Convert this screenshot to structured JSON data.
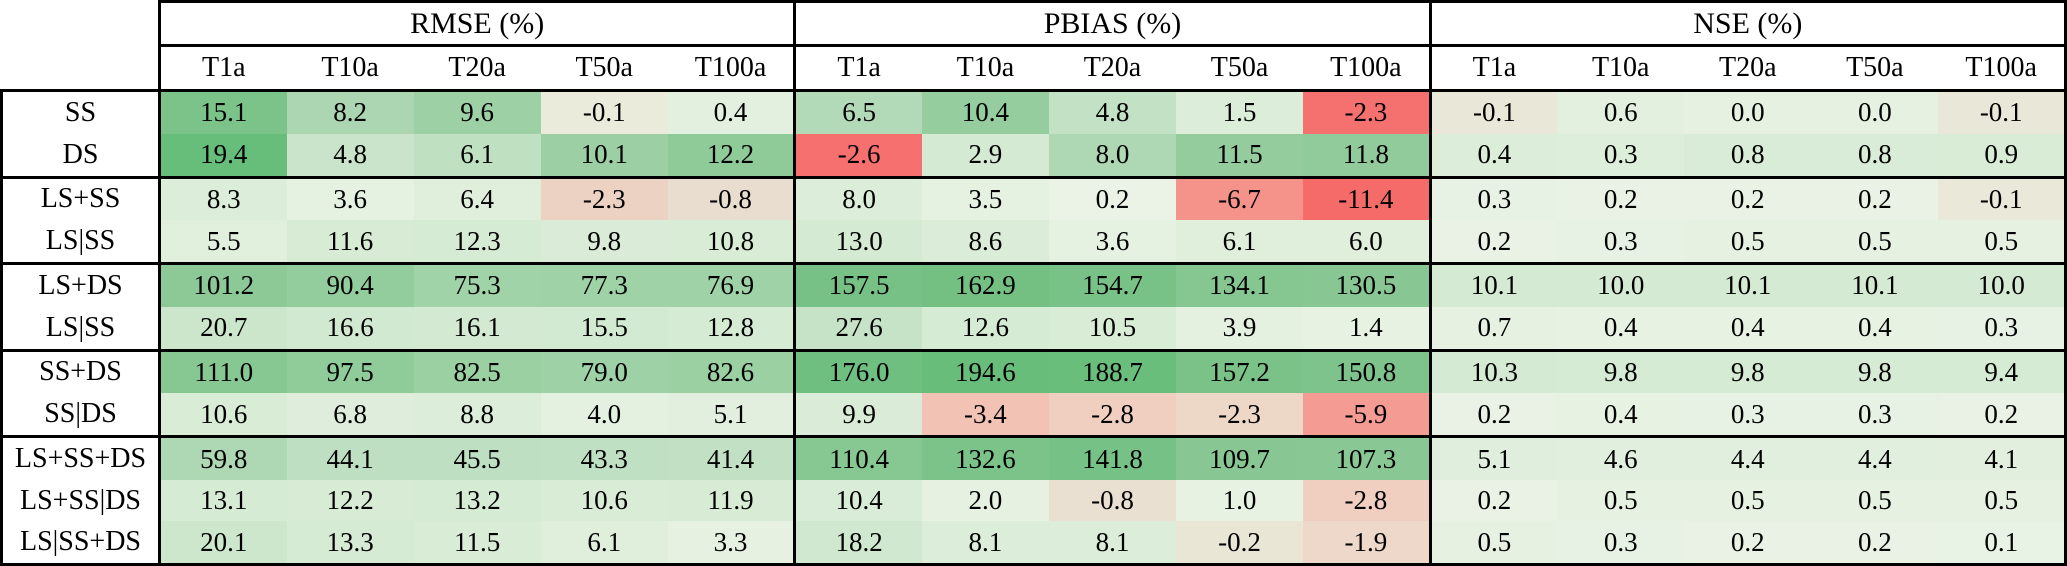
{
  "chart_data": {
    "type": "heatmap",
    "col_groups": [
      "RMSE (%)",
      "PBIAS (%)",
      "NSE (%)"
    ],
    "columns": [
      "T1a",
      "T10a",
      "T20a",
      "T50a",
      "T100a"
    ],
    "corner_label": "",
    "legend": "none",
    "colormap": {
      "positive_high": "#68bd7a",
      "near_zero": "#eaf3e5",
      "negative_low": "#f5696b",
      "neutral_beige": "#e9e8d8"
    },
    "row_groups": [
      {
        "rows": [
          {
            "label": "SS",
            "values": [
              [
                15.1,
                8.2,
                9.6,
                -0.1,
                0.4
              ],
              [
                6.5,
                10.4,
                4.8,
                1.5,
                -2.3
              ],
              [
                -0.1,
                0.6,
                0.0,
                0.0,
                -0.1
              ]
            ],
            "colors": [
              [
                "#7cc38a",
                "#abd6b1",
                "#9dd1a5",
                "#eaebdb",
                "#e3f0df"
              ],
              [
                "#b3dab8",
                "#95cd9f",
                "#c3e1c5",
                "#dceeda",
                "#f5716f"
              ],
              [
                "#e9e8d8",
                "#e3efdf",
                "#e6f1e1",
                "#e6f1e1",
                "#e9e8d8"
              ]
            ]
          },
          {
            "label": "DS",
            "values": [
              [
                19.4,
                4.8,
                6.1,
                10.1,
                12.2
              ],
              [
                -2.6,
                2.9,
                8.0,
                11.5,
                11.8
              ],
              [
                0.4,
                0.3,
                0.8,
                0.8,
                0.9
              ]
            ],
            "colors": [
              [
                "#67bd7a",
                "#c9e4ca",
                "#c0e0c2",
                "#9cd0a4",
                "#8fca99"
              ],
              [
                "#f5706e",
                "#d5ead3",
                "#aed8b4",
                "#94cc9e",
                "#91cb9b"
              ],
              [
                "#dceeda",
                "#ddeedb",
                "#d9ecd7",
                "#d9ecd7",
                "#d8ecd6"
              ]
            ]
          }
        ]
      },
      {
        "rows": [
          {
            "label": "LS+SS",
            "values": [
              [
                8.3,
                3.6,
                6.4,
                -2.3,
                -0.8
              ],
              [
                8.0,
                3.5,
                0.2,
                -6.7,
                -11.4
              ],
              [
                0.3,
                0.2,
                0.2,
                0.2,
                -0.1
              ]
            ],
            "colors": [
              [
                "#dcedd9",
                "#e5f1e1",
                "#e0eedc",
                "#ebd2c3",
                "#e9ddcf"
              ],
              [
                "#dcedd9",
                "#e5f1e1",
                "#eaf3e5",
                "#f5938b",
                "#f56b69"
              ],
              [
                "#e8f2e4",
                "#e9f2e4",
                "#e9f2e4",
                "#e9f2e4",
                "#eae8d8"
              ]
            ]
          },
          {
            "label": "LS|SS",
            "values": [
              [
                5.5,
                11.6,
                12.3,
                9.8,
                10.8
              ],
              [
                13.0,
                8.6,
                3.6,
                6.1,
                6.0
              ],
              [
                0.2,
                0.3,
                0.5,
                0.5,
                0.5
              ]
            ],
            "colors": [
              [
                "#e1efdd",
                "#d7ebd5",
                "#d6ebd4",
                "#daecd7",
                "#d8ecd6"
              ],
              [
                "#d5ead3",
                "#dbedd8",
                "#e5f1e1",
                "#e0eedc",
                "#e0eedc"
              ],
              [
                "#e9f2e4",
                "#e8f2e4",
                "#e7f1e2",
                "#e7f1e2",
                "#e7f1e2"
              ]
            ]
          }
        ]
      },
      {
        "rows": [
          {
            "label": "LS+DS",
            "values": [
              [
                101.2,
                90.4,
                75.3,
                77.3,
                76.9
              ],
              [
                157.5,
                162.9,
                154.7,
                134.1,
                130.5
              ],
              [
                10.1,
                10.0,
                10.1,
                10.1,
                10.0
              ]
            ],
            "colors": [
              [
                "#8cc997",
                "#94cd9d",
                "#a1d3a9",
                "#9fd2a7",
                "#9fd2a7"
              ],
              [
                "#77c186",
                "#74c083",
                "#78c287",
                "#85c691",
                "#88c793"
              ],
              [
                "#d4ead2",
                "#d5ead2",
                "#d4ead2",
                "#d4ead2",
                "#d5ead2"
              ]
            ]
          },
          {
            "label": "LS|SS",
            "values": [
              [
                20.7,
                16.6,
                16.1,
                15.5,
                12.8
              ],
              [
                27.6,
                12.6,
                10.5,
                3.9,
                1.4
              ],
              [
                0.7,
                0.4,
                0.4,
                0.4,
                0.3
              ]
            ],
            "colors": [
              [
                "#cce6cb",
                "#d2e9d1",
                "#d3e9d1",
                "#d3ead2",
                "#d6ebd4"
              ],
              [
                "#c7e3c7",
                "#d6ebd4",
                "#d9ecd6",
                "#e4f0e0",
                "#e8f2e3"
              ],
              [
                "#e7f1e2",
                "#e8f2e3",
                "#e8f2e3",
                "#e8f2e3",
                "#e8f2e4"
              ]
            ]
          }
        ]
      },
      {
        "rows": [
          {
            "label": "SS+DS",
            "values": [
              [
                111.0,
                97.5,
                82.5,
                79.0,
                82.6
              ],
              [
                176.0,
                194.6,
                188.7,
                157.2,
                150.8
              ],
              [
                10.3,
                9.8,
                9.8,
                9.8,
                9.4
              ]
            ],
            "colors": [
              [
                "#87c792",
                "#90cb9a",
                "#9bd0a3",
                "#9ed1a6",
                "#9bd0a3"
              ],
              [
                "#6fbf80",
                "#68bd7a",
                "#6abe7c",
                "#7ac288",
                "#7dc38b"
              ],
              [
                "#d4ead2",
                "#d5ebd3",
                "#d5ebd3",
                "#d5ebd3",
                "#d6ebd3"
              ]
            ]
          },
          {
            "label": "SS|DS",
            "values": [
              [
                10.6,
                6.8,
                8.8,
                4.0,
                5.1
              ],
              [
                9.9,
                -3.4,
                -2.8,
                -2.3,
                -5.9
              ],
              [
                0.2,
                0.4,
                0.3,
                0.3,
                0.2
              ]
            ],
            "colors": [
              [
                "#d9ecd6",
                "#dfeedc",
                "#dceeda",
                "#e4f0e0",
                "#e2efde"
              ],
              [
                "#daecd7",
                "#f2c2b5",
                "#f0cfc1",
                "#edd8c8",
                "#f49b93"
              ],
              [
                "#e9f2e4",
                "#e8f2e3",
                "#e8f2e4",
                "#e8f2e4",
                "#e9f2e4"
              ]
            ]
          }
        ]
      },
      {
        "rows": [
          {
            "label": "LS+SS+DS",
            "values": [
              [
                59.8,
                44.1,
                45.5,
                43.3,
                41.4
              ],
              [
                110.4,
                132.6,
                141.8,
                109.7,
                107.3
              ],
              [
                5.1,
                4.6,
                4.4,
                4.4,
                4.1
              ]
            ],
            "colors": [
              [
                "#aed8b4",
                "#bfdfc2",
                "#bedfc1",
                "#c0e0c3",
                "#c2e1c4"
              ],
              [
                "#87c792",
                "#7cc38a",
                "#76c185",
                "#88c793",
                "#89c894"
              ],
              [
                "#e0efdd",
                "#e1efde",
                "#e1efde",
                "#e1efde",
                "#e2efde"
              ]
            ]
          },
          {
            "label": "LS+SS|DS",
            "values": [
              [
                13.1,
                12.2,
                13.2,
                10.6,
                11.9
              ],
              [
                10.4,
                2.0,
                -0.8,
                1.0,
                -2.8
              ],
              [
                0.2,
                0.5,
                0.5,
                0.5,
                0.5
              ]
            ],
            "colors": [
              [
                "#d6ebd4",
                "#d7ebd5",
                "#d6ebd4",
                "#d9ecd6",
                "#d8ecd5"
              ],
              [
                "#d9ecd7",
                "#e7f1e2",
                "#eae0d1",
                "#e8f2e3",
                "#f0cfc1"
              ],
              [
                "#e9f2e4",
                "#e7f1e2",
                "#e7f1e2",
                "#e7f1e2",
                "#e7f1e2"
              ]
            ]
          },
          {
            "label": "LS|SS+DS",
            "values": [
              [
                20.1,
                13.3,
                11.5,
                6.1,
                3.3
              ],
              [
                18.2,
                8.1,
                8.1,
                -0.2,
                -1.9
              ],
              [
                0.5,
                0.3,
                0.2,
                0.2,
                0.1
              ]
            ],
            "colors": [
              [
                "#cde7cc",
                "#d6ebd4",
                "#d8ecd6",
                "#e0eedc",
                "#e6f1e1"
              ],
              [
                "#d0e8cf",
                "#dcedd9",
                "#dcedd9",
                "#e9e6d6",
                "#eed8c9"
              ],
              [
                "#e7f1e2",
                "#e8f2e4",
                "#e9f2e4",
                "#e9f2e4",
                "#e9f3e5"
              ]
            ]
          }
        ]
      }
    ]
  }
}
